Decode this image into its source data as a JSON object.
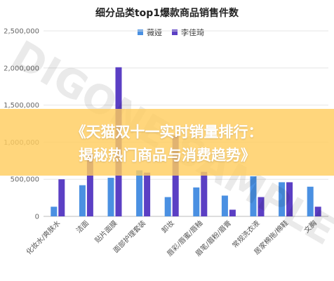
{
  "chart_data": {
    "type": "bar",
    "title": "细分品类top1爆款商品销售件数",
    "categories": [
      "化妆水/爽肤水",
      "洁面",
      "贴片面膜",
      "面部护理套装",
      "卸妆",
      "唇彩/唇蜜/唇釉",
      "眉笔/眉粉/眉膏",
      "常规洗衣液",
      "居家棉拖/棉鞋",
      "文胸"
    ],
    "series": [
      {
        "name": "薇娅",
        "color": "#4a90e2",
        "values": [
          130000,
          420000,
          520000,
          620000,
          260000,
          390000,
          280000,
          540000,
          460000,
          400000
        ]
      },
      {
        "name": "李佳琦",
        "color": "#5b3fc4",
        "values": [
          500000,
          850000,
          2010000,
          590000,
          1090000,
          600000,
          90000,
          260000,
          460000,
          130000
        ]
      }
    ],
    "yticks": [
      "0",
      "500,000",
      "1,000,000",
      "1,500,000",
      "2,000,000",
      "2,500,000"
    ],
    "ylim": [
      0,
      2500000
    ],
    "grid": true,
    "legend": "top-center"
  },
  "watermark": "DIGONE SAMPLE",
  "banner": {
    "line1": "《天猫双十一实时销量排行：",
    "line2": "揭秘热门商品与消费趋势》"
  }
}
